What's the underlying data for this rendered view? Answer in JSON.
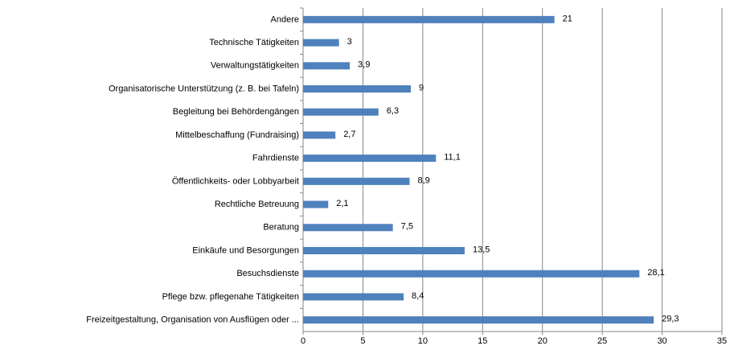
{
  "chart_data": {
    "type": "bar",
    "orientation": "horizontal",
    "categories": [
      "Andere",
      "Technische Tätigkeiten",
      "Verwaltungstätigkeiten",
      "Organisatorische Unterstützung (z. B. bei Tafeln)",
      "Begleitung bei Behördengängen",
      "Mittelbeschaffung (Fundraising)",
      "Fahrdienste",
      "Öffentlichkeits- oder Lobbyarbeit",
      "Rechtliche Betreuung",
      "Beratung",
      "Einkäufe und Besorgungen",
      "Besuchsdienste",
      "Pflege bzw. pflegenahe Tätigkeiten",
      "Freizeitgestaltung, Organisation von Ausflügen oder ..."
    ],
    "values": [
      21,
      3,
      3.9,
      9,
      6.3,
      2.7,
      11.1,
      8.9,
      2.1,
      7.5,
      13.5,
      28.1,
      8.4,
      29.3
    ],
    "value_labels": [
      "21",
      "3",
      "3,9",
      "9",
      "6,3",
      "2,7",
      "11,1",
      "8,9",
      "2,1",
      "7,5",
      "13,5",
      "28,1",
      "8,4",
      "29,3"
    ],
    "color": "#4f81bd",
    "xlim": [
      0,
      35
    ],
    "xticks": [
      0,
      5,
      10,
      15,
      20,
      25,
      30,
      35
    ],
    "grid": true
  }
}
